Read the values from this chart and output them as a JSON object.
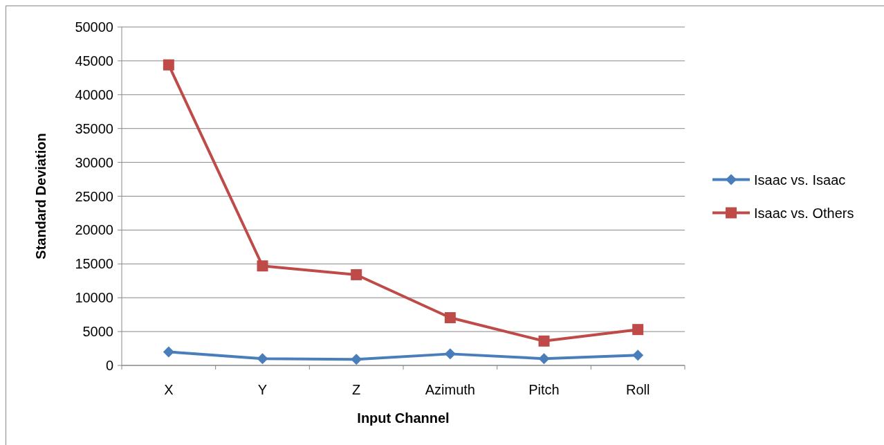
{
  "chart_data": {
    "type": "line",
    "xlabel": "Input Channel",
    "ylabel": "Standard Deviation",
    "categories": [
      "X",
      "Y",
      "Z",
      "Azimuth",
      "Pitch",
      "Roll"
    ],
    "series": [
      {
        "name": "Isaac vs. Isaac",
        "color": "#4a7ebb",
        "marker": "diamond",
        "values": [
          2000,
          1000,
          900,
          1700,
          1000,
          1500
        ]
      },
      {
        "name": "Isaac vs. Others",
        "color": "#be4b48",
        "marker": "square",
        "values": [
          44400,
          14700,
          13400,
          7050,
          3600,
          5300
        ]
      }
    ],
    "ylim": [
      0,
      50000
    ],
    "yticks": [
      0,
      5000,
      10000,
      15000,
      20000,
      25000,
      30000,
      35000,
      40000,
      45000,
      50000
    ],
    "grid": "y",
    "legend": "right"
  }
}
